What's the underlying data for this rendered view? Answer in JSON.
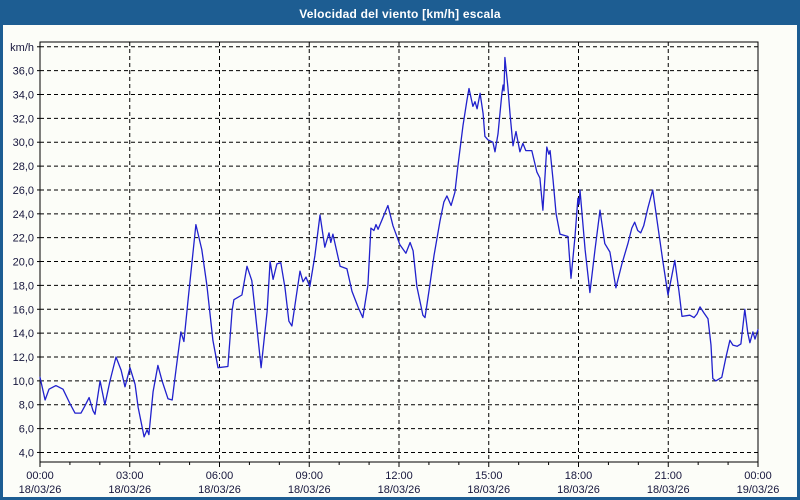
{
  "window": {
    "title": "Velocidad del viento [km/h] escala",
    "titlebar_color": "#1d5d92",
    "border_color": "#1d5d92",
    "background_color": "#fcfdf8"
  },
  "chart_data": {
    "type": "line",
    "title": "Velocidad del viento [km/h] escala",
    "unit_label": "km/h",
    "line_color": "#2121cd",
    "grid": true,
    "grid_color": "#000000",
    "ylim": [
      3.2,
      38.4
    ],
    "xlim_hours": [
      0,
      24
    ],
    "ylabel": "km/h",
    "xlabel": "",
    "legend": "none",
    "y_tick_values": [
      4,
      6,
      8,
      10,
      12,
      14,
      16,
      18,
      20,
      22,
      24,
      26,
      28,
      30,
      32,
      34,
      36
    ],
    "y_tick_labels": [
      "4,0",
      "6,0",
      "8,0",
      "10,0",
      "12,0",
      "14,0",
      "16,0",
      "18,0",
      "20,0",
      "22,0",
      "24,0",
      "26,0",
      "28,0",
      "30,0",
      "32,0",
      "34,0",
      "36,0"
    ],
    "y_grid_values": [
      4,
      6,
      8,
      10,
      12,
      14,
      16,
      18,
      20,
      22,
      24,
      26,
      28,
      30,
      32,
      34,
      36,
      38
    ],
    "x_grid_hours": [
      3,
      6,
      9,
      12,
      15,
      18,
      21
    ],
    "x_minor_tick_every_hours": 1,
    "x_major_ticks": [
      {
        "hour": 0,
        "time": "00:00",
        "date": "18/03/26"
      },
      {
        "hour": 3,
        "time": "03:00",
        "date": "18/03/26"
      },
      {
        "hour": 6,
        "time": "06:00",
        "date": "18/03/26"
      },
      {
        "hour": 9,
        "time": "09:00",
        "date": "18/03/26"
      },
      {
        "hour": 12,
        "time": "12:00",
        "date": "18/03/26"
      },
      {
        "hour": 15,
        "time": "15:00",
        "date": "18/03/26"
      },
      {
        "hour": 18,
        "time": "18:00",
        "date": "18/03/26"
      },
      {
        "hour": 21,
        "time": "21:00",
        "date": "18/03/26"
      },
      {
        "hour": 24,
        "time": "00:00",
        "date": "19/03/26"
      }
    ],
    "points": [
      [
        0,
        10.3
      ],
      [
        0.17,
        8.4
      ],
      [
        0.3,
        9.3
      ],
      [
        0.53,
        9.6
      ],
      [
        0.77,
        9.3
      ],
      [
        1,
        8.1
      ],
      [
        1.17,
        7.3
      ],
      [
        1.37,
        7.3
      ],
      [
        1.5,
        7.9
      ],
      [
        1.64,
        8.6
      ],
      [
        1.77,
        7.5
      ],
      [
        1.84,
        7.2
      ],
      [
        2.01,
        10
      ],
      [
        2.17,
        8
      ],
      [
        2.34,
        10
      ],
      [
        2.54,
        12
      ],
      [
        2.71,
        10.9
      ],
      [
        2.84,
        9.5
      ],
      [
        3.01,
        11.1
      ],
      [
        3.18,
        9.7
      ],
      [
        3.28,
        7.8
      ],
      [
        3.48,
        5.3
      ],
      [
        3.58,
        5.9
      ],
      [
        3.64,
        5.5
      ],
      [
        3.78,
        9.1
      ],
      [
        3.94,
        11.3
      ],
      [
        4.08,
        10
      ],
      [
        4.28,
        8.5
      ],
      [
        4.42,
        8.4
      ],
      [
        4.55,
        11
      ],
      [
        4.71,
        14.1
      ],
      [
        4.81,
        13.3
      ],
      [
        4.95,
        16.8
      ],
      [
        5.21,
        23.1
      ],
      [
        5.41,
        21
      ],
      [
        5.58,
        18
      ],
      [
        5.78,
        13.4
      ],
      [
        5.95,
        11.1
      ],
      [
        6.28,
        11.2
      ],
      [
        6.42,
        15.9
      ],
      [
        6.48,
        16.8
      ],
      [
        6.75,
        17.2
      ],
      [
        6.92,
        19.6
      ],
      [
        7.08,
        18.4
      ],
      [
        7.19,
        15.9
      ],
      [
        7.39,
        11.1
      ],
      [
        7.59,
        15.8
      ],
      [
        7.69,
        20
      ],
      [
        7.79,
        18.5
      ],
      [
        7.92,
        19.8
      ],
      [
        8.05,
        19.9
      ],
      [
        8.19,
        17.8
      ],
      [
        8.32,
        15
      ],
      [
        8.42,
        14.6
      ],
      [
        8.56,
        17
      ],
      [
        8.69,
        19.2
      ],
      [
        8.79,
        18.3
      ],
      [
        8.89,
        18.7
      ],
      [
        9.02,
        17.9
      ],
      [
        9.19,
        20.5
      ],
      [
        9.36,
        23.9
      ],
      [
        9.52,
        21.2
      ],
      [
        9.66,
        22.4
      ],
      [
        9.72,
        21.6
      ],
      [
        9.79,
        22.3
      ],
      [
        10.03,
        19.6
      ],
      [
        10.26,
        19.4
      ],
      [
        10.43,
        17.5
      ],
      [
        10.63,
        16.2
      ],
      [
        10.79,
        15.3
      ],
      [
        10.96,
        18
      ],
      [
        11.06,
        22.8
      ],
      [
        11.16,
        22.6
      ],
      [
        11.23,
        23.1
      ],
      [
        11.3,
        22.7
      ],
      [
        11.63,
        24.7
      ],
      [
        11.8,
        23
      ],
      [
        12.03,
        21.4
      ],
      [
        12.23,
        20.7
      ],
      [
        12.37,
        21.6
      ],
      [
        12.47,
        20.9
      ],
      [
        12.6,
        17.9
      ],
      [
        12.8,
        15.5
      ],
      [
        12.87,
        15.3
      ],
      [
        13.03,
        18
      ],
      [
        13.17,
        20.5
      ],
      [
        13.37,
        23.4
      ],
      [
        13.5,
        25
      ],
      [
        13.6,
        25.5
      ],
      [
        13.74,
        24.7
      ],
      [
        13.87,
        25.8
      ],
      [
        13.97,
        28
      ],
      [
        14.14,
        31.4
      ],
      [
        14.27,
        33.5
      ],
      [
        14.34,
        34.5
      ],
      [
        14.47,
        33
      ],
      [
        14.54,
        33.4
      ],
      [
        14.61,
        32.8
      ],
      [
        14.71,
        34.1
      ],
      [
        14.81,
        32.4
      ],
      [
        14.87,
        30.5
      ],
      [
        14.97,
        30.2
      ],
      [
        15.14,
        30
      ],
      [
        15.21,
        29.2
      ],
      [
        15.31,
        30.7
      ],
      [
        15.44,
        34.1
      ],
      [
        15.48,
        34.8
      ],
      [
        15.51,
        34.3
      ],
      [
        15.54,
        37.1
      ],
      [
        15.64,
        34.6
      ],
      [
        15.71,
        32.4
      ],
      [
        15.81,
        29.7
      ],
      [
        15.91,
        30.9
      ],
      [
        16.04,
        29.2
      ],
      [
        16.14,
        29.9
      ],
      [
        16.24,
        29.3
      ],
      [
        16.44,
        29.3
      ],
      [
        16.61,
        27.5
      ],
      [
        16.71,
        27
      ],
      [
        16.81,
        24.3
      ],
      [
        16.94,
        29.6
      ],
      [
        17.01,
        29
      ],
      [
        17.05,
        29.3
      ],
      [
        17.15,
        26.8
      ],
      [
        17.25,
        24
      ],
      [
        17.38,
        22.3
      ],
      [
        17.65,
        22.1
      ],
      [
        17.75,
        18.6
      ],
      [
        17.88,
        22
      ],
      [
        17.98,
        25.3
      ],
      [
        18.02,
        24.8
      ],
      [
        18.05,
        26
      ],
      [
        18.22,
        21
      ],
      [
        18.38,
        17.4
      ],
      [
        18.55,
        21
      ],
      [
        18.72,
        24.3
      ],
      [
        18.88,
        21.5
      ],
      [
        19.05,
        20.8
      ],
      [
        19.25,
        17.8
      ],
      [
        19.45,
        19.8
      ],
      [
        19.65,
        21.5
      ],
      [
        19.78,
        22.8
      ],
      [
        19.88,
        23.3
      ],
      [
        19.98,
        22.6
      ],
      [
        20.08,
        22.4
      ],
      [
        20.18,
        23
      ],
      [
        20.32,
        24.5
      ],
      [
        20.48,
        26
      ],
      [
        20.65,
        23
      ],
      [
        20.82,
        20
      ],
      [
        20.99,
        17.2
      ],
      [
        21.12,
        18.8
      ],
      [
        21.22,
        20.1
      ],
      [
        21.36,
        17.5
      ],
      [
        21.46,
        15.4
      ],
      [
        21.72,
        15.5
      ],
      [
        21.86,
        15.3
      ],
      [
        21.96,
        15.6
      ],
      [
        22.06,
        16.2
      ],
      [
        22.19,
        15.7
      ],
      [
        22.33,
        15.2
      ],
      [
        22.43,
        13
      ],
      [
        22.49,
        10.2
      ],
      [
        22.59,
        10
      ],
      [
        22.79,
        10.3
      ],
      [
        22.93,
        12
      ],
      [
        23.06,
        13.4
      ],
      [
        23.16,
        13
      ],
      [
        23.3,
        12.9
      ],
      [
        23.43,
        13.1
      ],
      [
        23.56,
        16
      ],
      [
        23.66,
        14
      ],
      [
        23.73,
        13.2
      ],
      [
        23.83,
        14.1
      ],
      [
        23.9,
        13.5
      ],
      [
        24,
        14.3
      ]
    ]
  }
}
